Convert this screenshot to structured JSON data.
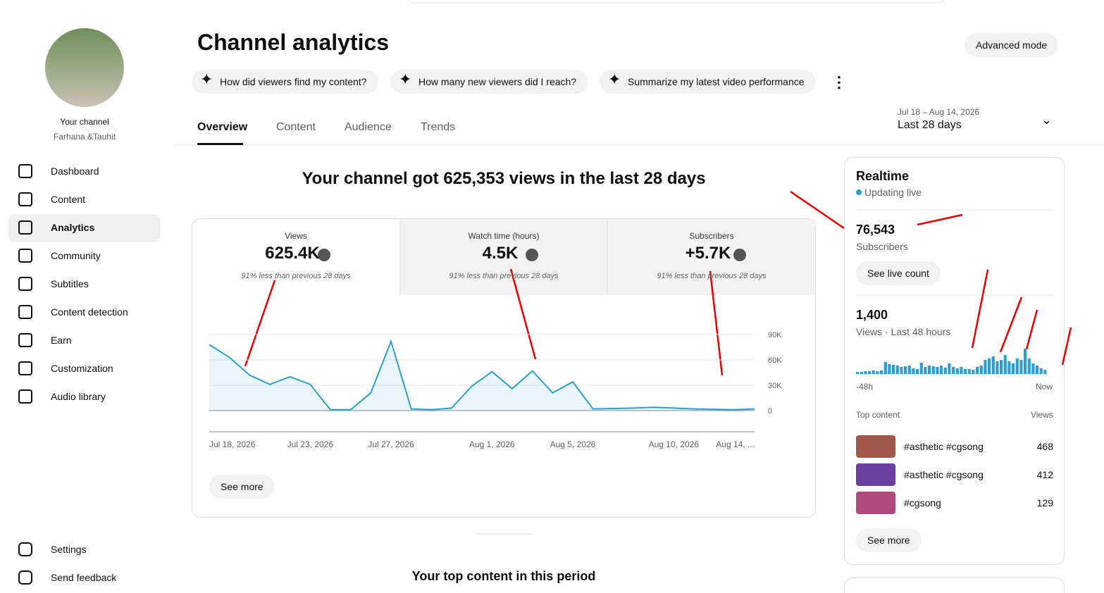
{
  "sidebar": {
    "channel_label": "Your channel",
    "channel_name": "Farhana &Tauhit",
    "nav": [
      "Dashboard",
      "Content",
      "Analytics",
      "Community",
      "Subtitles",
      "Content detection",
      "Earn",
      "Customization",
      "Audio library"
    ],
    "selected_index": 2,
    "footer": [
      "Settings",
      "Send feedback"
    ]
  },
  "header": {
    "title": "Channel analytics",
    "advanced": "Advanced mode",
    "prompts": [
      "How did viewers find my content?",
      "How many new viewers did I reach?",
      "Summarize my latest video performance"
    ]
  },
  "tabs": [
    "Overview",
    "Content",
    "Audience",
    "Trends"
  ],
  "date_range": {
    "dates": "Jul 18 – Aug 14, 2026",
    "period": "Last 28 days"
  },
  "headline": "Your channel got 625,353 views in the last 28 days",
  "metrics": [
    {
      "label": "Views",
      "value": "625.4K",
      "note": "91% less than previous 28 days"
    },
    {
      "label": "Watch time (hours)",
      "value": "4.5K",
      "note": "91% less than previous 28 days"
    },
    {
      "label": "Subscribers",
      "value": "+5.7K",
      "note": "91% less than previous 28 days"
    }
  ],
  "chart_data": {
    "type": "line",
    "categories": [
      "Jul 18, 2026",
      null,
      null,
      null,
      null,
      "Jul 23, 2026",
      null,
      null,
      null,
      "Jul 27, 2026",
      null,
      null,
      null,
      null,
      "Aug 1, 2026",
      null,
      null,
      null,
      "Aug 5, 2026",
      null,
      null,
      null,
      null,
      "Aug 10, 2026",
      null,
      null,
      null,
      "Aug 14, ..."
    ],
    "series": [
      {
        "name": "Views",
        "color": "#2b9fd0",
        "values": [
          78000,
          63000,
          42000,
          31000,
          40000,
          31000,
          1000,
          1000,
          21000,
          82000,
          2000,
          1000,
          3000,
          29000,
          46000,
          26000,
          47000,
          21000,
          34000,
          2000,
          2500,
          3000,
          4000,
          3000,
          2000,
          1500,
          1000,
          2000
        ]
      }
    ],
    "ylim": [
      0,
      90000
    ],
    "yticks": [
      0,
      {
        "value": 30000,
        "label": "30K"
      },
      {
        "value": 60000,
        "label": "60K"
      },
      {
        "value": 90000,
        "label": "90K"
      }
    ],
    "grid": true
  },
  "see_more": "See more",
  "bottom_heading": "Your top content in this period",
  "realtime": {
    "title": "Realtime",
    "status": "Updating live",
    "subscribers": "76,543",
    "subscribers_label": "Subscribers",
    "live_button": "See live count",
    "views": "1,400",
    "views_label": "Views · Last 48 hours",
    "bars": {
      "type": "bar",
      "color": "#2b9fd0",
      "values": [
        3,
        3,
        4,
        4,
        5,
        4,
        5,
        17,
        14,
        13,
        12,
        10,
        11,
        12,
        8,
        7,
        16,
        10,
        12,
        11,
        10,
        12,
        9,
        15,
        10,
        8,
        10,
        7,
        7,
        6,
        10,
        12,
        20,
        22,
        25,
        18,
        20,
        27,
        18,
        15,
        22,
        20,
        36,
        22,
        15,
        12,
        8,
        6
      ]
    },
    "start_label": "-48h",
    "end_label": "Now",
    "top_label": "Top content",
    "views_col": "Views",
    "top": [
      {
        "title": "#asthetic #cgsong",
        "views": 468
      },
      {
        "title": "#asthetic #cgsong",
        "views": 412
      },
      {
        "title": "#cgsong",
        "views": 129
      }
    ],
    "see_more": "See more"
  }
}
